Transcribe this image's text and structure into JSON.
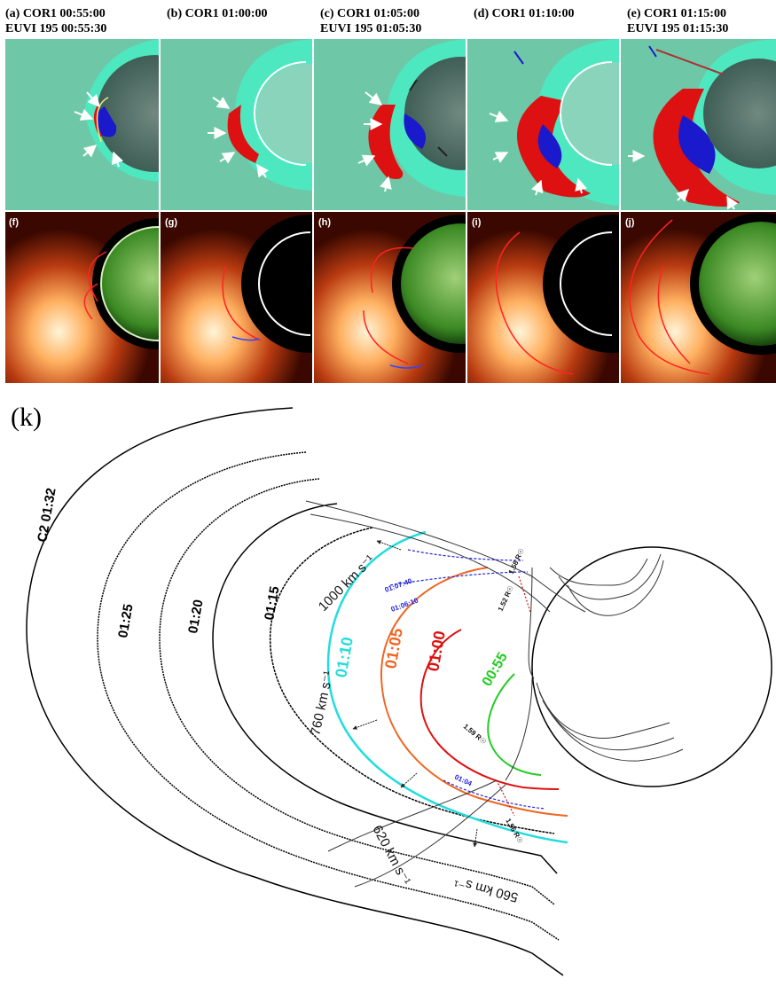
{
  "top_panels": [
    {
      "line1": "(a) COR1 00:55:00",
      "line2": "EUVI 195 00:55:30"
    },
    {
      "line1": "(b) COR1 01:00:00",
      "line2": ""
    },
    {
      "line1": "(c) COR1 01:05:00",
      "line2": "EUVI 195 01:05:30"
    },
    {
      "line1": "(d) COR1 01:10:00",
      "line2": ""
    },
    {
      "line1": "(e) COR1 01:15:00",
      "line2": "EUVI 195 01:15:30"
    }
  ],
  "bottom_panels": [
    "(f)",
    "(g)",
    "(h)",
    "(i)",
    "(j)"
  ],
  "diagram": {
    "label": "(k)",
    "outer_fronts": [
      "C2 01:32",
      "01:25",
      "01:20",
      "01:15"
    ],
    "colored_fronts": [
      {
        "label": "01:10",
        "color": "#22dddd"
      },
      {
        "label": "01:05",
        "color": "#ee6622"
      },
      {
        "label": "01:00",
        "color": "#dd1111"
      },
      {
        "label": "00:55",
        "color": "#22cc22"
      }
    ],
    "speeds": [
      "1000 km s⁻¹",
      "760 km s⁻¹",
      "620 km s⁻¹",
      "560 km s⁻¹"
    ],
    "blue_times": [
      "01:07:40",
      "01:06:10",
      "01:04"
    ],
    "height_marks": [
      "1.58 R☉",
      "1.52 R☉",
      "1.59 R☉",
      "1.56 R☉"
    ]
  },
  "colors": {
    "cor1_background": "#5ec8a8",
    "difference_front": "#dd1111",
    "euvi_green": "#3c8a24",
    "white_light": "#ffe6b0"
  }
}
